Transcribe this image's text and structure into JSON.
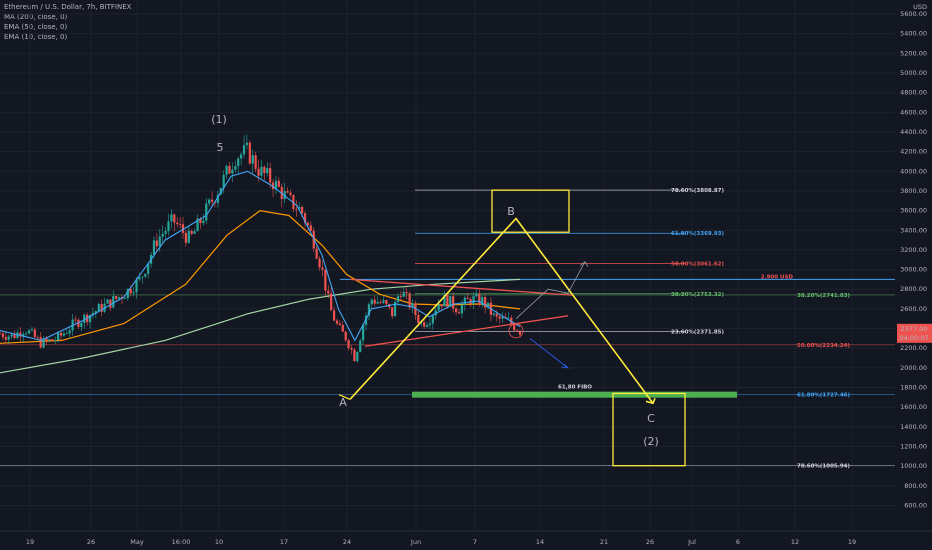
{
  "legend": {
    "title": "Ethereum / U.S. Dollar, 7h, BITFINEX",
    "ma200": "MA (200, close, 0)",
    "ema50": "EMA (50, close, 0)",
    "ema10": "EMA (10, close, 0)"
  },
  "currency": "USD",
  "price_label": {
    "value": "2377.00",
    "countdown": "04:00:07",
    "color": "#ef5350"
  },
  "chart_data": {
    "type": "candlestick",
    "title": "Ethereum / U.S. Dollar, 7h, BITFINEX",
    "ylim": [
      500,
      5700
    ],
    "y_ticks": [
      "5600.00",
      "5400.00",
      "5200.00",
      "5000.00",
      "4800.00",
      "4600.00",
      "4400.00",
      "4200.00",
      "4000.00",
      "3800.00",
      "3600.00",
      "3400.00",
      "3200.00",
      "3000.00",
      "2800.00",
      "2600.00",
      "2400.00",
      "2200.00",
      "2000.00",
      "1800.00",
      "1600.00",
      "1400.00",
      "1200.00",
      "1000.00",
      "800.00",
      "600.00"
    ],
    "x_ticks": [
      "19",
      "26",
      "May",
      "16:00",
      "10",
      "17",
      "24",
      "Jun",
      "7",
      "14",
      "21",
      "26",
      "Jul",
      "6",
      "12",
      "19"
    ],
    "price_path": [
      {
        "t": 0,
        "v": 2350
      },
      {
        "t": 3,
        "v": 2320
      },
      {
        "t": 6,
        "v": 2400
      },
      {
        "t": 10,
        "v": 2250
      },
      {
        "t": 14,
        "v": 2300
      },
      {
        "t": 18,
        "v": 2450
      },
      {
        "t": 22,
        "v": 2550
      },
      {
        "t": 26,
        "v": 2650
      },
      {
        "t": 30,
        "v": 2750
      },
      {
        "t": 34,
        "v": 2900
      },
      {
        "t": 38,
        "v": 3300
      },
      {
        "t": 42,
        "v": 3500
      },
      {
        "t": 46,
        "v": 3300
      },
      {
        "t": 50,
        "v": 3600
      },
      {
        "t": 54,
        "v": 3900
      },
      {
        "t": 57,
        "v": 4150
      },
      {
        "t": 60,
        "v": 4200
      },
      {
        "t": 63,
        "v": 4000
      },
      {
        "t": 66,
        "v": 3900
      },
      {
        "t": 70,
        "v": 3700
      },
      {
        "t": 73,
        "v": 3600
      },
      {
        "t": 76,
        "v": 3300
      },
      {
        "t": 78,
        "v": 3000
      },
      {
        "t": 80,
        "v": 2600
      },
      {
        "t": 82,
        "v": 2400
      },
      {
        "t": 84,
        "v": 2300
      },
      {
        "t": 86,
        "v": 2100
      },
      {
        "t": 88,
        "v": 2450
      },
      {
        "t": 90,
        "v": 2700
      },
      {
        "t": 93,
        "v": 2650
      },
      {
        "t": 95,
        "v": 2550
      },
      {
        "t": 97,
        "v": 2800
      },
      {
        "t": 100,
        "v": 2600
      },
      {
        "t": 102,
        "v": 2450
      },
      {
        "t": 104,
        "v": 2500
      },
      {
        "t": 106,
        "v": 2650
      },
      {
        "t": 108,
        "v": 2700
      },
      {
        "t": 111,
        "v": 2600
      },
      {
        "t": 114,
        "v": 2700
      },
      {
        "t": 117,
        "v": 2680
      },
      {
        "t": 120,
        "v": 2500
      },
      {
        "t": 123,
        "v": 2480
      },
      {
        "t": 126,
        "v": 2377
      }
    ],
    "ema10_path": [
      {
        "t": 0,
        "v": 2380
      },
      {
        "t": 10,
        "v": 2280
      },
      {
        "t": 20,
        "v": 2480
      },
      {
        "t": 30,
        "v": 2720
      },
      {
        "t": 40,
        "v": 3300
      },
      {
        "t": 50,
        "v": 3550
      },
      {
        "t": 56,
        "v": 3950
      },
      {
        "t": 60,
        "v": 4000
      },
      {
        "t": 66,
        "v": 3850
      },
      {
        "t": 72,
        "v": 3650
      },
      {
        "t": 78,
        "v": 3150
      },
      {
        "t": 82,
        "v": 2600
      },
      {
        "t": 86,
        "v": 2280
      },
      {
        "t": 90,
        "v": 2600
      },
      {
        "t": 96,
        "v": 2650
      },
      {
        "t": 100,
        "v": 2620
      },
      {
        "t": 104,
        "v": 2520
      },
      {
        "t": 110,
        "v": 2650
      },
      {
        "t": 116,
        "v": 2680
      },
      {
        "t": 122,
        "v": 2520
      },
      {
        "t": 126,
        "v": 2420
      }
    ],
    "ema50_path": [
      {
        "t": 0,
        "v": 2250
      },
      {
        "t": 15,
        "v": 2280
      },
      {
        "t": 30,
        "v": 2450
      },
      {
        "t": 45,
        "v": 2850
      },
      {
        "t": 55,
        "v": 3350
      },
      {
        "t": 63,
        "v": 3600
      },
      {
        "t": 70,
        "v": 3550
      },
      {
        "t": 78,
        "v": 3250
      },
      {
        "t": 84,
        "v": 2950
      },
      {
        "t": 92,
        "v": 2750
      },
      {
        "t": 100,
        "v": 2650
      },
      {
        "t": 108,
        "v": 2640
      },
      {
        "t": 116,
        "v": 2650
      },
      {
        "t": 126,
        "v": 2600
      }
    ],
    "ma200_path": [
      {
        "t": 0,
        "v": 1950
      },
      {
        "t": 20,
        "v": 2100
      },
      {
        "t": 40,
        "v": 2280
      },
      {
        "t": 60,
        "v": 2550
      },
      {
        "t": 75,
        "v": 2700
      },
      {
        "t": 90,
        "v": 2800
      },
      {
        "t": 105,
        "v": 2850
      },
      {
        "t": 126,
        "v": 2900
      }
    ],
    "fib_levels": [
      {
        "label": "78.60%(3808.87)",
        "value": 3808.87,
        "color": "#d1d4dc"
      },
      {
        "label": "61.80%(3369.93)",
        "value": 3369.93,
        "color": "#42a5f5"
      },
      {
        "label": "50.00%(3061.62)",
        "value": 3061.62,
        "color": "#ef5350"
      },
      {
        "label": "38.20%(2753.32)",
        "value": 2753.32,
        "color": "#66bb6a"
      },
      {
        "label": "23.60%(2371.85)",
        "value": 2371.85,
        "color": "#d1d4dc"
      }
    ],
    "fib_levels_right": [
      {
        "label": "38.20%(2741.83)",
        "value": 2741.83,
        "color": "#66bb6a"
      },
      {
        "label": "50.00%(2234.24)",
        "value": 2234.24,
        "color": "#ef5350"
      },
      {
        "label": "61.80%(1727.46)",
        "value": 1727.46,
        "color": "#42a5f5"
      },
      {
        "label": "78.60%(1005.94)",
        "value": 1005.94,
        "color": "#d1d4dc"
      }
    ],
    "resistance": {
      "label": "2.900 USD",
      "value": 2900,
      "color": "#ef5350"
    },
    "fibo_zone": {
      "label": "61,80 FIBO",
      "value": 1727.46,
      "color": "#4caf50"
    },
    "wave_labels": {
      "wave1": "(1)",
      "five": "5",
      "A": "A",
      "B": "B",
      "C": "C",
      "wave2": "(2)"
    }
  }
}
